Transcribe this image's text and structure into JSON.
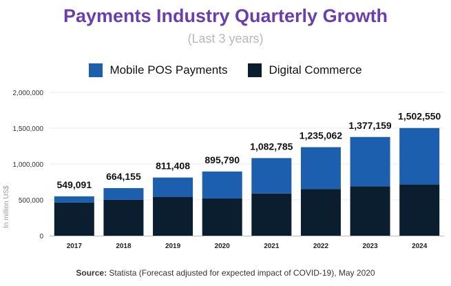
{
  "chart_data": {
    "type": "bar",
    "stacked": true,
    "title": "Payments Industry Quarterly Growth",
    "subtitle": "(Last 3 years)",
    "ylabel": "In million US$",
    "xlabel": "",
    "ylim": [
      0,
      2000000
    ],
    "yticks": [
      "0",
      "500,000",
      "1,000,000",
      "1,500,000",
      "2,000,000"
    ],
    "yticks_values": [
      0,
      500000,
      1000000,
      1500000,
      2000000
    ],
    "grid": true,
    "legend_position": "top",
    "categories": [
      "2017",
      "2018",
      "2019",
      "2020",
      "2021",
      "2022",
      "2023",
      "2024"
    ],
    "totals": [
      549091,
      664155,
      811408,
      895790,
      1082785,
      1235062,
      1377159,
      1502550
    ],
    "total_labels": [
      "549,091",
      "664,155",
      "811,408",
      "895,790",
      "1,082,785",
      "1,235,062",
      "1,377,159",
      "1,502,550"
    ],
    "series": [
      {
        "name": "Digital Commerce",
        "color": "#0b1e30",
        "values": [
          463000,
          501000,
          542000,
          520000,
          589000,
          652000,
          690000,
          715000
        ]
      },
      {
        "name": "Mobile POS Payments",
        "color": "#1b5fae",
        "values": [
          86091,
          163155,
          269408,
          375790,
          493785,
          583062,
          687159,
          787550
        ]
      }
    ]
  },
  "source": {
    "label": "Source:",
    "text": " Statista (Forecast adjusted for expected impact of COVID-19), May 2020"
  }
}
